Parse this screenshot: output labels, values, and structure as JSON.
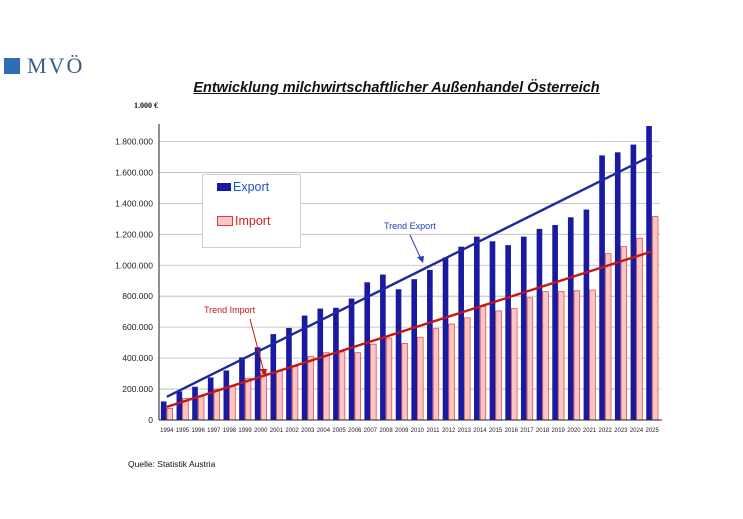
{
  "logo": {
    "text": "MVÖ"
  },
  "title": "Entwicklung milchwirtschaftlicher Außenhandel Österreich",
  "unit_label": "1.000 €",
  "source": "Quelle: Statistik Austria",
  "colors": {
    "export_bar": "#1a1aa0",
    "import_bar_fill": "#f7c6c6",
    "import_bar_stroke": "#e03a3a",
    "trend_export": "#1f2a9a",
    "trend_import": "#c01818",
    "grid": "#b8b8b8",
    "legend_export_text": "#1f55c0",
    "legend_import_text": "#d02020",
    "trend_export_text": "#2040b0",
    "trend_import_text": "#c81818"
  },
  "legend": {
    "export": "Export",
    "import": "Import"
  },
  "chart_data": {
    "type": "bar",
    "title": "Entwicklung milchwirtschaftlicher Außenhandel Österreich",
    "xlabel": "",
    "ylabel": "1.000 €",
    "ylim": [
      0,
      1900000
    ],
    "yticks": [
      0,
      200000,
      400000,
      600000,
      800000,
      1000000,
      1200000,
      1400000,
      1600000,
      1800000
    ],
    "ytick_labels": [
      "0",
      "200.000",
      "400.000",
      "600.000",
      "800.000",
      "1.000.000",
      "1.200.000",
      "1.400.000",
      "1.600.000",
      "1.800.000"
    ],
    "grid": true,
    "legend_position": "top-left",
    "categories": [
      "1994",
      "1995",
      "1996",
      "1997",
      "1998",
      "1999",
      "2000",
      "2001",
      "2002",
      "2003",
      "2004",
      "2005",
      "2006",
      "2007",
      "2008",
      "2009",
      "2010",
      "2011",
      "2012",
      "2013",
      "2014",
      "2015",
      "2016",
      "2017",
      "2018",
      "2019",
      "2020",
      "2021",
      "2022",
      "2023",
      "2024",
      "2025"
    ],
    "series": [
      {
        "name": "Export",
        "values": [
          120000,
          185000,
          215000,
          275000,
          320000,
          405000,
          470000,
          555000,
          595000,
          675000,
          720000,
          725000,
          785000,
          890000,
          940000,
          845000,
          910000,
          970000,
          1050000,
          1120000,
          1185000,
          1155000,
          1130000,
          1185000,
          1235000,
          1260000,
          1310000,
          1360000,
          1710000,
          1730000,
          1780000,
          1900000
        ]
      },
      {
        "name": "Import",
        "values": [
          75000,
          140000,
          150000,
          200000,
          215000,
          270000,
          300000,
          315000,
          345000,
          410000,
          435000,
          440000,
          435000,
          490000,
          530000,
          495000,
          535000,
          590000,
          620000,
          660000,
          735000,
          705000,
          720000,
          790000,
          830000,
          830000,
          835000,
          840000,
          1075000,
          1120000,
          1175000,
          1315000
        ]
      }
    ],
    "trend_lines": [
      {
        "name": "Trend Export",
        "from": [
          "1994",
          150000
        ],
        "to": [
          "2025",
          1710000
        ]
      },
      {
        "name": "Trend Import",
        "from": [
          "1994",
          85000
        ],
        "to": [
          "2025",
          1090000
        ]
      }
    ]
  }
}
